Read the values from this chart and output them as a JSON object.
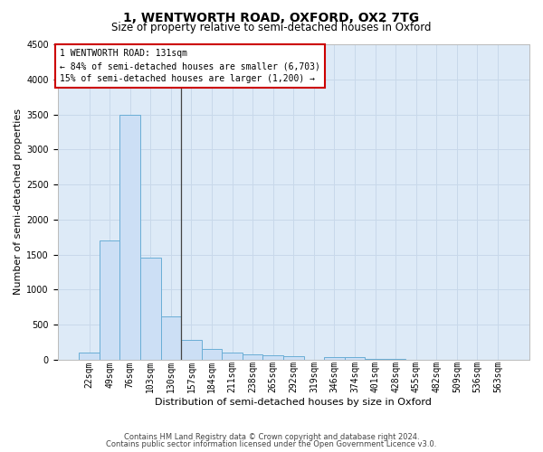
{
  "title": "1, WENTWORTH ROAD, OXFORD, OX2 7TG",
  "subtitle": "Size of property relative to semi-detached houses in Oxford",
  "xlabel": "Distribution of semi-detached houses by size in Oxford",
  "ylabel": "Number of semi-detached properties",
  "footer_line1": "Contains HM Land Registry data © Crown copyright and database right 2024.",
  "footer_line2": "Contains public sector information licensed under the Open Government Licence v3.0.",
  "bar_color": "#ccdff5",
  "bar_edge_color": "#6aaed6",
  "grid_color": "#c8d8ea",
  "bg_color": "#ddeaf7",
  "annotation_text": "1 WENTWORTH ROAD: 131sqm",
  "annotation_line1": "← 84% of semi-detached houses are smaller (6,703)",
  "annotation_line2": "15% of semi-detached houses are larger (1,200) →",
  "categories": [
    "22sqm",
    "49sqm",
    "76sqm",
    "103sqm",
    "130sqm",
    "157sqm",
    "184sqm",
    "211sqm",
    "238sqm",
    "265sqm",
    "292sqm",
    "319sqm",
    "346sqm",
    "374sqm",
    "401sqm",
    "428sqm",
    "455sqm",
    "482sqm",
    "509sqm",
    "536sqm",
    "563sqm"
  ],
  "values": [
    100,
    1700,
    3500,
    1450,
    620,
    280,
    150,
    100,
    80,
    60,
    50,
    0,
    30,
    30,
    10,
    5,
    3,
    2,
    1,
    1,
    1
  ],
  "ylim": [
    0,
    4500
  ],
  "yticks": [
    0,
    500,
    1000,
    1500,
    2000,
    2500,
    3000,
    3500,
    4000,
    4500
  ],
  "highlight_bar_index": 4,
  "title_fontsize": 10,
  "subtitle_fontsize": 8.5,
  "ylabel_fontsize": 8,
  "xlabel_fontsize": 8,
  "tick_fontsize": 7,
  "annotation_fontsize": 7,
  "footer_fontsize": 6
}
